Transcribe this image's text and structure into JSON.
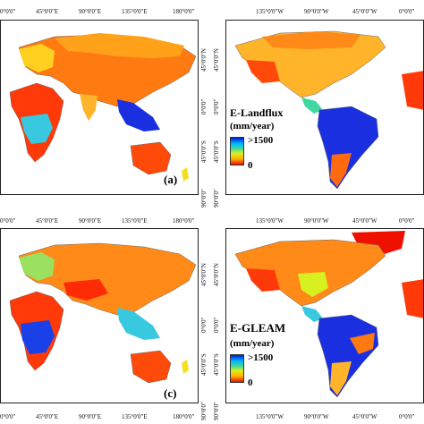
{
  "panels": {
    "a": {
      "label": "(a)",
      "top_ticks": [
        "0°0'0\"",
        "45°0'0\"E",
        "90°0'0\"E",
        "135°0'0\"E",
        "180°0'0\""
      ],
      "right_ticks": [
        "45°0'0\"N",
        "0°0'0\"",
        "45°0'0\"S",
        "90°0'0\""
      ]
    },
    "b": {
      "top_ticks": [
        "135°0'0\"W",
        "90°0'0\"W",
        "45°0'0\"W",
        "0°0'0\""
      ],
      "left_ticks": [
        "45°0'0\"N",
        "0°0'0\"",
        "45°0'0\"S",
        "90°0'0\""
      ],
      "legend_title": "E-Landflux",
      "legend_unit": "(mm/year)",
      "legend_max": ">1500",
      "legend_min": "0"
    },
    "c": {
      "label": "(c)",
      "top_ticks": [
        "0°0'0\"",
        "45°0'0\"E",
        "90°0'0\"E",
        "135°0'0\"E",
        "180°0'0\""
      ],
      "bottom_ticks": [
        "0°0'0\"",
        "45°0'0\"E",
        "90°0'0\"E",
        "135°0'0\"E",
        "180°0'0\""
      ],
      "right_ticks": [
        "45°0'0\"N",
        "0°0'0\"",
        "45°0'0\"S",
        "90°0'0\""
      ]
    },
    "d": {
      "top_ticks": [
        "135°0'0\"W",
        "90°0'0\"W",
        "45°0'0\"W",
        "0°0'0\""
      ],
      "bottom_ticks": [
        "135°0'0\"W",
        "90°0'0\"W",
        "45°0'0\"W",
        "0°0'0\""
      ],
      "left_ticks": [
        "45°0'0\"N",
        "0°0'0\"",
        "45°0'0\"S",
        "90°0'0\""
      ],
      "legend_title": "E-GLEAM",
      "legend_unit": "(mm/year)",
      "legend_max": ">1500",
      "legend_min": "0"
    }
  },
  "colors": {
    "high_blue": "#0018d8",
    "mid_cyan": "#00b8ff",
    "mid_green": "#3fd8a0",
    "mid_yellow": "#d8f020",
    "orange": "#ffb400",
    "low_red": "#f01000"
  }
}
